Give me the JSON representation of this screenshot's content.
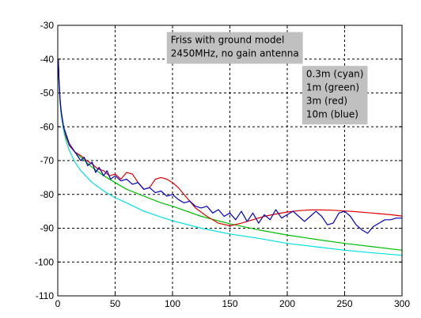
{
  "chart_data": {
    "type": "line",
    "xlim": [
      0,
      300
    ],
    "ylim": [
      -110,
      -30
    ],
    "xticks": [
      0,
      50,
      100,
      150,
      200,
      250,
      300
    ],
    "yticks": [
      -30,
      -40,
      -50,
      -60,
      -70,
      -80,
      -90,
      -100,
      -110
    ],
    "grid": true,
    "annotations": [
      {
        "lines": [
          "Friss with ground model",
          "2450MHz, no gain antenna"
        ],
        "anchor": [
          95,
          -32.0
        ],
        "bg": "#c0c0c0"
      },
      {
        "lines": [
          "0.3m (cyan)",
          "1m (green)",
          "3m (red)",
          "10m (blue)"
        ],
        "anchor": [
          213,
          -42.0
        ],
        "bg": "#c0c0c0"
      }
    ],
    "series": [
      {
        "color": "#00e0e0",
        "x": [
          0.5,
          1,
          2,
          3,
          5,
          7,
          10,
          15,
          20,
          30,
          40,
          50,
          60,
          75,
          90,
          100,
          125,
          150,
          175,
          200,
          225,
          250,
          275,
          300
        ],
        "y": [
          -40,
          -47,
          -53,
          -56.5,
          -61,
          -64,
          -67,
          -70.5,
          -73,
          -76.5,
          -79,
          -81,
          -82.5,
          -85,
          -86.7,
          -87.8,
          -90,
          -91.7,
          -93,
          -94.5,
          -95.5,
          -96.5,
          -97.3,
          -98
        ]
      },
      {
        "color": "#00c000",
        "x": [
          0.5,
          1,
          2,
          3,
          5,
          7,
          10,
          15,
          20,
          30,
          40,
          50,
          60,
          75,
          90,
          100,
          125,
          150,
          175,
          200,
          225,
          250,
          275,
          300
        ],
        "y": [
          -40,
          -46,
          -52,
          -55.5,
          -60,
          -63,
          -65.5,
          -67.5,
          -69,
          -72,
          -74.5,
          -76.5,
          -78.5,
          -80.5,
          -82.5,
          -83.5,
          -86.5,
          -88.7,
          -90.5,
          -92,
          -93.3,
          -94.5,
          -95.5,
          -96.5
        ]
      },
      {
        "color": "#e00000",
        "x": [
          0.5,
          1,
          2,
          3,
          5,
          7,
          10,
          15,
          20,
          25,
          30,
          35,
          40,
          45,
          50,
          55,
          60,
          65,
          70,
          75,
          80,
          85,
          90,
          95,
          100,
          105,
          110,
          115,
          120,
          130,
          140,
          150,
          160,
          170,
          180,
          190,
          200,
          210,
          220,
          230,
          240,
          250,
          260,
          270,
          280,
          290,
          300
        ],
        "y": [
          -40,
          -46,
          -52,
          -55.5,
          -60,
          -62.5,
          -65.5,
          -67.5,
          -68.5,
          -70,
          -71,
          -72.5,
          -73,
          -74.5,
          -74,
          -75.5,
          -73.5,
          -74,
          -76.5,
          -78.5,
          -78,
          -75.5,
          -75,
          -75.5,
          -76.5,
          -78,
          -80,
          -82,
          -84,
          -86.5,
          -88.5,
          -89.3,
          -88.5,
          -87.5,
          -86.5,
          -85.8,
          -85.2,
          -84.8,
          -84.6,
          -84.6,
          -84.7,
          -84.9,
          -85.1,
          -85.4,
          -85.7,
          -86,
          -86.4
        ]
      },
      {
        "color": "#0000c0",
        "x": [
          0.5,
          1,
          2,
          3,
          5,
          7,
          10,
          13,
          16,
          20,
          23,
          26,
          30,
          33,
          36,
          40,
          43,
          46,
          50,
          55,
          60,
          65,
          70,
          75,
          80,
          85,
          90,
          95,
          100,
          105,
          110,
          115,
          120,
          125,
          130,
          135,
          140,
          145,
          150,
          155,
          160,
          165,
          170,
          175,
          180,
          185,
          190,
          195,
          200,
          205,
          210,
          215,
          220,
          225,
          230,
          235,
          240,
          245,
          250,
          255,
          260,
          265,
          270,
          275,
          280,
          285,
          290,
          295,
          300
        ],
        "y": [
          -40,
          -46,
          -52,
          -55.5,
          -60,
          -62,
          -65,
          -66.5,
          -68,
          -70,
          -69,
          -71.5,
          -70.5,
          -73.5,
          -72,
          -74.5,
          -73,
          -75.5,
          -74.5,
          -76,
          -75.5,
          -77,
          -76.5,
          -78.5,
          -78,
          -79.5,
          -79,
          -80.5,
          -80,
          -81.5,
          -82.5,
          -82,
          -83.5,
          -84,
          -83.5,
          -85.5,
          -84.5,
          -86.5,
          -85.5,
          -87.5,
          -85,
          -88,
          -85.5,
          -88.5,
          -86,
          -87.5,
          -84.5,
          -87,
          -86,
          -85,
          -86.5,
          -88,
          -86.5,
          -85,
          -86.5,
          -89,
          -88.5,
          -85.5,
          -85,
          -86.5,
          -89,
          -90.5,
          -91.5,
          -89.5,
          -88.5,
          -87.5,
          -87.5,
          -87,
          -87
        ]
      }
    ]
  }
}
